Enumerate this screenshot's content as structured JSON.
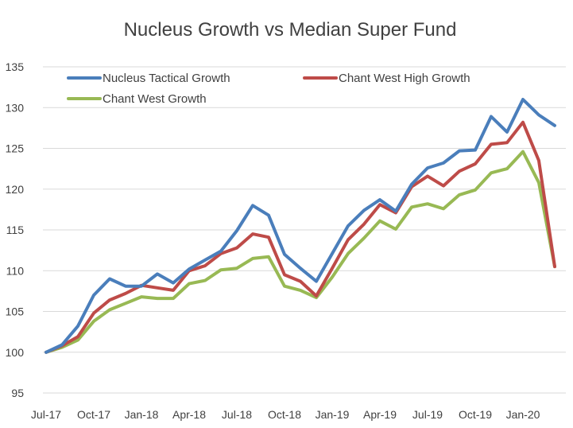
{
  "chart_data": {
    "type": "line",
    "title": "Nucleus Growth vs Median Super Fund",
    "xlabel": "",
    "ylabel": "",
    "ylim": [
      95,
      135
    ],
    "yticks": [
      95,
      100,
      105,
      110,
      115,
      120,
      125,
      130,
      135
    ],
    "grid": true,
    "legend_position": "top",
    "x_tick_labels": [
      "Jul-17",
      "Oct-17",
      "Jan-18",
      "Apr-18",
      "Jul-18",
      "Oct-18",
      "Jan-19",
      "Apr-19",
      "Jul-19",
      "Oct-19",
      "Jan-20"
    ],
    "x": [
      "Jul-17",
      "Aug-17",
      "Sep-17",
      "Oct-17",
      "Nov-17",
      "Dec-17",
      "Jan-18",
      "Feb-18",
      "Mar-18",
      "Apr-18",
      "May-18",
      "Jun-18",
      "Jul-18",
      "Aug-18",
      "Sep-18",
      "Oct-18",
      "Nov-18",
      "Dec-18",
      "Jan-19",
      "Feb-19",
      "Mar-19",
      "Apr-19",
      "May-19",
      "Jun-19",
      "Jul-19",
      "Aug-19",
      "Sep-19",
      "Oct-19",
      "Nov-19",
      "Dec-19",
      "Jan-20",
      "Feb-20",
      "Mar-20"
    ],
    "series": [
      {
        "name": "Nucleus Tactical Growth",
        "color": "#4a7ebb",
        "values": [
          100.0,
          100.9,
          103.2,
          107.0,
          109.0,
          108.1,
          108.1,
          109.6,
          108.5,
          110.2,
          111.3,
          112.4,
          114.9,
          118.0,
          116.8,
          112.0,
          110.3,
          108.7,
          112.1,
          115.5,
          117.4,
          118.7,
          117.3,
          120.6,
          122.6,
          123.2,
          124.7,
          124.8,
          128.9,
          127.0,
          131.0,
          129.1,
          127.8
        ]
      },
      {
        "name": "Chant West High Growth",
        "color": "#be4b48",
        "values": [
          100.0,
          100.8,
          101.9,
          104.8,
          106.4,
          107.2,
          108.2,
          107.9,
          107.6,
          110.0,
          110.6,
          112.1,
          112.8,
          114.5,
          114.1,
          109.5,
          108.7,
          106.9,
          110.3,
          113.8,
          115.7,
          118.1,
          117.1,
          120.3,
          121.6,
          120.4,
          122.2,
          123.1,
          125.5,
          125.7,
          128.2,
          123.5,
          110.5
        ]
      },
      {
        "name": "Chant West Growth",
        "color": "#98b954",
        "values": [
          100.0,
          100.6,
          101.5,
          103.8,
          105.2,
          106.0,
          106.8,
          106.6,
          106.6,
          108.4,
          108.8,
          110.1,
          110.3,
          111.5,
          111.7,
          108.1,
          107.6,
          106.7,
          109.2,
          112.1,
          114.0,
          116.1,
          115.1,
          117.8,
          118.2,
          117.6,
          119.3,
          119.9,
          122.0,
          122.5,
          124.6,
          120.8,
          110.5
        ]
      }
    ]
  }
}
